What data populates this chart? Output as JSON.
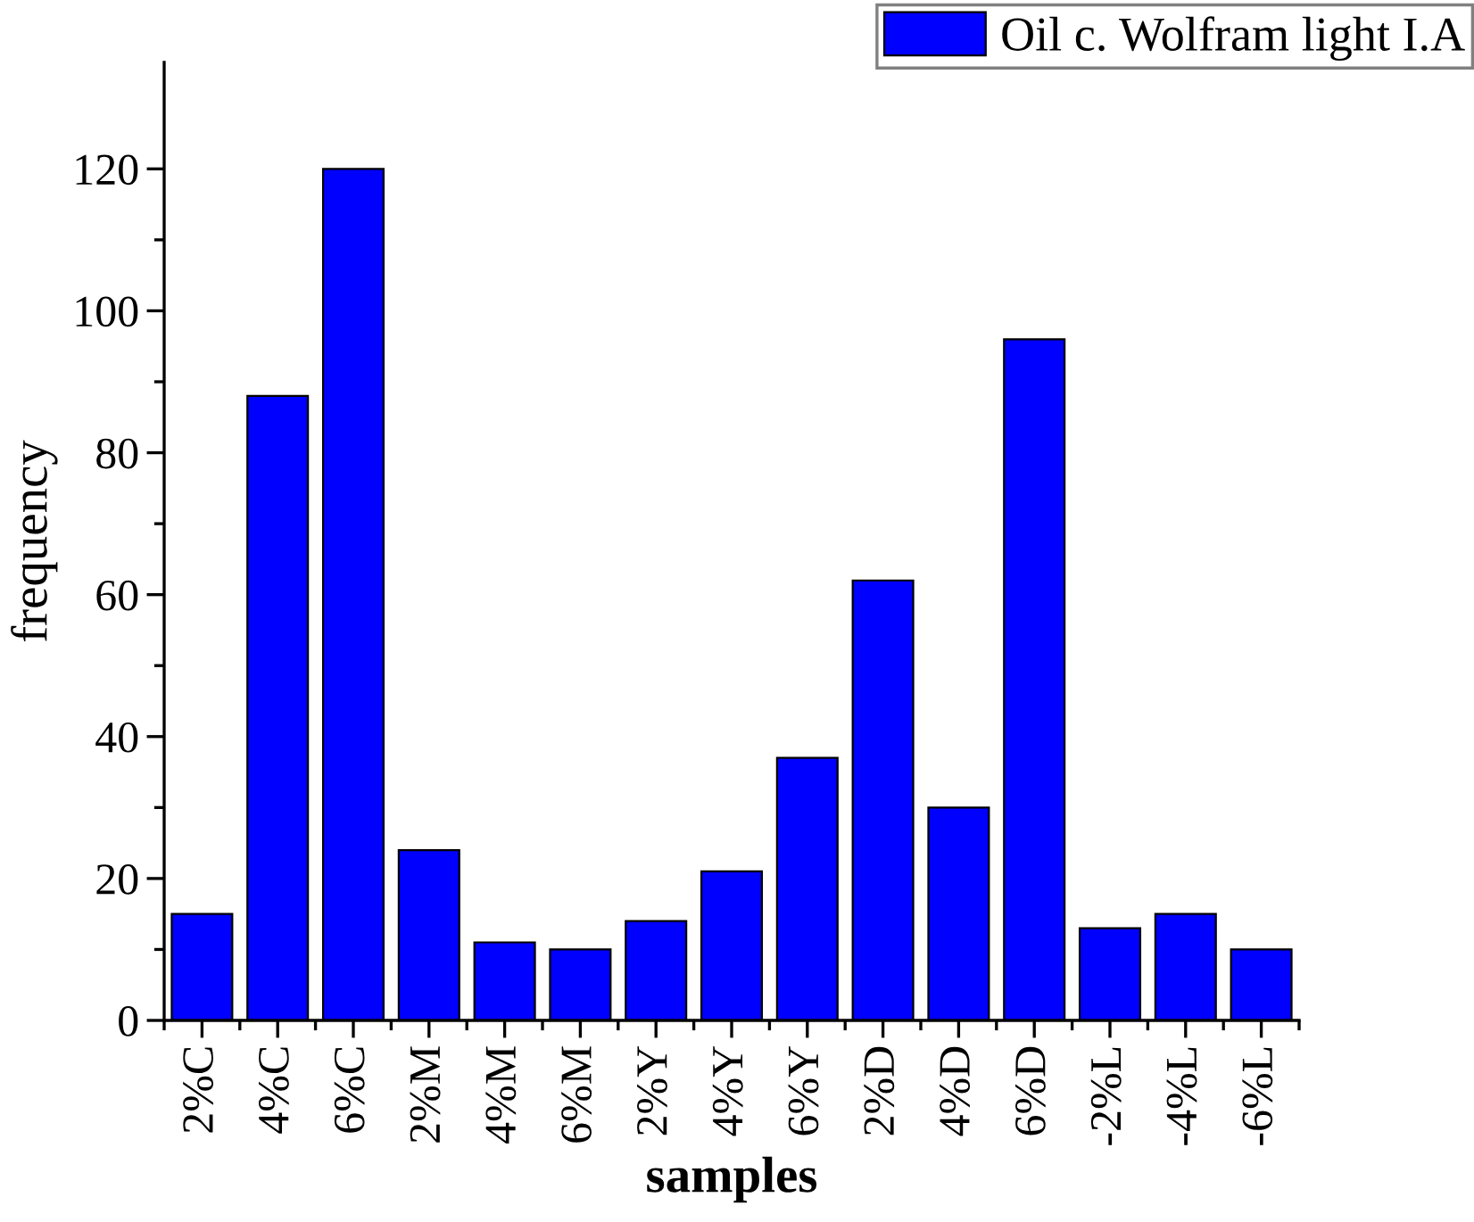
{
  "chart_data": {
    "type": "bar",
    "categories": [
      "2%C",
      "4%C",
      "6%C",
      "2%M",
      "4%M",
      "6%M",
      "2%Y",
      "4%Y",
      "6%Y",
      "2%D",
      "4%D",
      "6%D",
      "-2%L",
      "-4%L",
      "-6%L"
    ],
    "series": [
      {
        "name": "Oil c. Wolfram light I.A",
        "color": "#0000ff",
        "values": [
          15,
          88,
          120,
          24,
          11,
          10,
          14,
          21,
          37,
          62,
          30,
          96,
          13,
          15,
          10
        ]
      }
    ],
    "xlabel": "samples",
    "ylabel": "frequency",
    "ylim": [
      0,
      135
    ],
    "yticks": [
      0,
      20,
      40,
      60,
      80,
      100,
      120
    ],
    "legend": "top right"
  }
}
